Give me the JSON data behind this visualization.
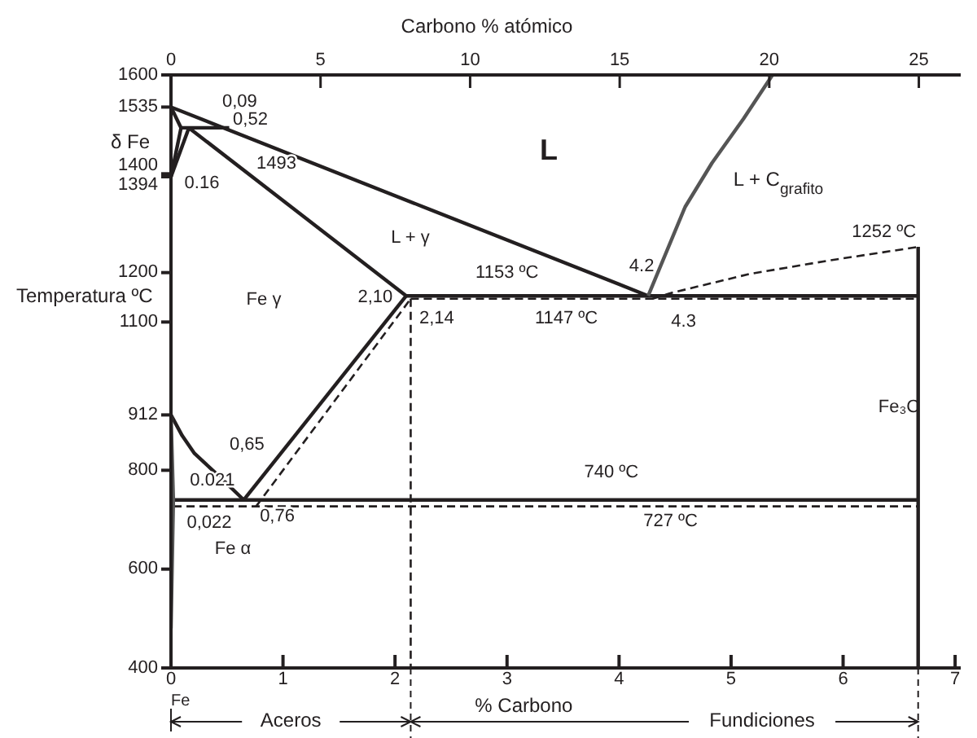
{
  "chart_data": {
    "type": "line",
    "xlabel": "% Carbono",
    "x2label": "Carbono % atómico",
    "ylabel": "Temperatura ºC",
    "xlim": [
      0,
      7.05
    ],
    "xticks": [
      0,
      1,
      2,
      3,
      4,
      5,
      6,
      7
    ],
    "x2lim": [
      0,
      26.4
    ],
    "x2ticks": [
      0,
      5,
      10,
      15,
      20,
      25
    ],
    "ylim": [
      400,
      1600
    ],
    "yticks": [
      1600,
      1535,
      1400,
      1394,
      1200,
      1100,
      912,
      800,
      600,
      400
    ],
    "legend": false,
    "grid": false,
    "series": [
      {
        "type": "line",
        "color": "#231f20",
        "line_style": "solid",
        "x": [
          0,
          4.26
        ],
        "values": [
          1535,
          1153
        ]
      },
      {
        "type": "line",
        "color": "#231f20",
        "line_style": "solid",
        "x": [
          0.09,
          0.52
        ],
        "values": [
          1493,
          1493
        ]
      },
      {
        "type": "line",
        "color": "#231f20",
        "line_style": "solid",
        "x": [
          0,
          0.09
        ],
        "values": [
          1535,
          1493
        ]
      },
      {
        "type": "line",
        "color": "#231f20",
        "line_style": "solid",
        "x": [
          0,
          0.09
        ],
        "values": [
          1394,
          1493
        ]
      },
      {
        "type": "line",
        "color": "#231f20",
        "line_style": "solid",
        "x": [
          0,
          0.16
        ],
        "values": [
          1394,
          1493
        ]
      },
      {
        "type": "line",
        "color": "#231f20",
        "line_style": "solid",
        "x": [
          0.16,
          2.1
        ],
        "values": [
          1493,
          1153
        ]
      },
      {
        "type": "line",
        "color": "#231f20",
        "line_style": "solid",
        "x": [
          2.1,
          6.67
        ],
        "values": [
          1153,
          1153
        ]
      },
      {
        "type": "line",
        "color": "#231f20",
        "line_style": "solid",
        "x": [
          6.67,
          6.67
        ],
        "values": [
          400,
          1252
        ]
      },
      {
        "type": "line",
        "color": "#231f20",
        "line_style": "dashed",
        "x": [
          2.14,
          6.67
        ],
        "values": [
          1147,
          1147
        ]
      },
      {
        "type": "line",
        "color": "#231f20",
        "line_style": "dashed",
        "x": [
          4.3,
          4.45,
          5.16,
          5.86,
          6.67
        ],
        "values": [
          1147,
          1158,
          1197,
          1224,
          1252
        ]
      },
      {
        "type": "line",
        "color": "#555555",
        "line_style": "solid",
        "x": [
          4.26,
          4.59,
          4.83,
          5.11,
          5.37
        ],
        "values": [
          1153,
          1333,
          1422,
          1511,
          1600
        ]
      },
      {
        "type": "line",
        "color": "#231f20",
        "line_style": "solid",
        "x": [
          0.65,
          2.1
        ],
        "values": [
          740,
          1153
        ]
      },
      {
        "type": "line",
        "color": "#231f20",
        "line_style": "dashed",
        "x": [
          0.76,
          2.14
        ],
        "values": [
          727,
          1147
        ]
      },
      {
        "type": "line",
        "color": "#231f20",
        "line_style": "solid",
        "x": [
          0,
          0.1,
          0.21,
          0.42,
          0.65
        ],
        "values": [
          912,
          870,
          834,
          790,
          740
        ]
      },
      {
        "type": "line",
        "color": "#231f20",
        "line_style": "solid",
        "x": [
          0.021,
          6.67
        ],
        "values": [
          740,
          740
        ]
      },
      {
        "type": "line",
        "color": "#231f20",
        "line_style": "dashed",
        "x": [
          0.022,
          6.67
        ],
        "values": [
          727,
          727
        ]
      },
      {
        "type": "line",
        "color": "#555555",
        "line_style": "solid",
        "x": [
          0,
          0.021,
          0
        ],
        "values": [
          912,
          740,
          480
        ]
      },
      {
        "type": "line",
        "color": "#231f20",
        "line_style": "dashed",
        "x": [
          2.14,
          2.14
        ],
        "values": [
          1147,
          400
        ]
      }
    ],
    "annotations": [
      {
        "text": "0,09",
        "x": 0.09,
        "y": 1493
      },
      {
        "text": "0,52",
        "x": 0.52,
        "y": 1493
      },
      {
        "text": "1493",
        "x": 0.52,
        "y": 1493
      },
      {
        "text": "0.16",
        "x": 0.16,
        "y": 1493
      },
      {
        "text": "2,10",
        "x": 2.1,
        "y": 1153
      },
      {
        "text": "2,14",
        "x": 2.14,
        "y": 1147
      },
      {
        "text": "1153 ºC",
        "x": 3,
        "y": 1153
      },
      {
        "text": "1147 ºC",
        "x": 3.5,
        "y": 1147
      },
      {
        "text": "4.2",
        "x": 4.26,
        "y": 1153
      },
      {
        "text": "4.3",
        "x": 4.3,
        "y": 1147
      },
      {
        "text": "1252 ºC",
        "x": 6.67,
        "y": 1252
      },
      {
        "text": "740 ºC",
        "x": 3.8,
        "y": 740
      },
      {
        "text": "727 ºC",
        "x": 4.3,
        "y": 727
      },
      {
        "text": "0,65",
        "x": 0.65,
        "y": 740
      },
      {
        "text": "0,76",
        "x": 0.76,
        "y": 727
      },
      {
        "text": "0.021",
        "x": 0.021,
        "y": 740
      },
      {
        "text": "0,022",
        "x": 0.022,
        "y": 727
      },
      "L",
      "L + γ",
      "Fe γ",
      "L + C$_{grafito}$",
      "Fe₃C",
      "Fe α",
      "δ Fe",
      "Fe",
      "Aceros",
      "Fundiciones"
    ]
  }
}
